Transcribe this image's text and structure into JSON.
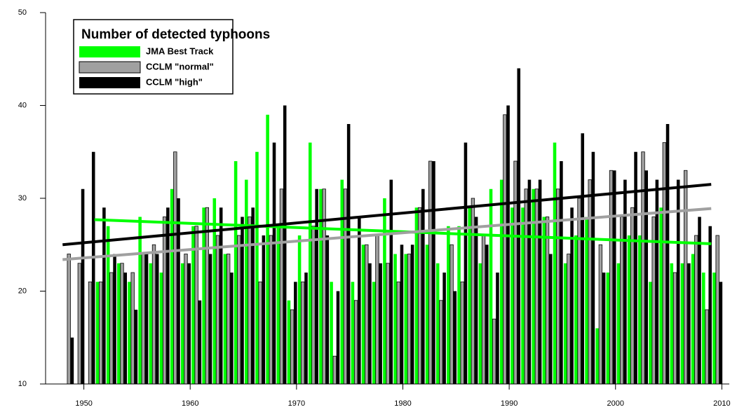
{
  "chart_data": {
    "type": "bar",
    "x": [
      1948,
      1949,
      1950,
      1951,
      1952,
      1953,
      1954,
      1955,
      1956,
      1957,
      1958,
      1959,
      1960,
      1961,
      1962,
      1963,
      1964,
      1965,
      1966,
      1967,
      1968,
      1969,
      1970,
      1971,
      1972,
      1973,
      1974,
      1975,
      1976,
      1977,
      1978,
      1979,
      1980,
      1981,
      1982,
      1983,
      1984,
      1985,
      1986,
      1987,
      1988,
      1989,
      1990,
      1991,
      1992,
      1993,
      1994,
      1995,
      1996,
      1997,
      1998,
      1999,
      2000,
      2001,
      2002,
      2003,
      2004,
      2005,
      2006,
      2007,
      2008,
      2009
    ],
    "legend_title": "Number of detected typhoons",
    "series": [
      {
        "name": "JMA Best Track",
        "color": "#00ff00",
        "values": [
          null,
          null,
          null,
          21,
          27,
          23,
          21,
          28,
          23,
          22,
          31,
          23,
          27,
          29,
          30,
          24,
          34,
          32,
          35,
          39,
          27,
          19,
          26,
          36,
          31,
          21,
          32,
          21,
          25,
          21,
          30,
          24,
          24,
          29,
          25,
          23,
          27,
          27,
          29,
          23,
          31,
          32,
          29,
          29,
          31,
          28,
          36,
          23,
          26,
          28,
          16,
          22,
          23,
          26,
          26,
          21,
          29,
          23,
          23,
          24,
          22,
          22
        ],
        "trend": {
          "x": [
            1951,
            2009
          ],
          "values": [
            27.7,
            25.1
          ]
        }
      },
      {
        "name": "CCLM \"normal\"",
        "color": "#a0a0a0",
        "values": [
          24,
          23,
          21,
          21,
          22,
          23,
          22,
          24,
          25,
          28,
          35,
          24,
          27,
          29,
          26,
          24,
          26,
          28,
          21,
          26,
          31,
          18,
          21,
          27,
          31,
          13,
          31,
          19,
          25,
          26,
          23,
          21,
          24,
          29,
          34,
          19,
          25,
          21,
          30,
          26,
          17,
          39,
          34,
          31,
          31,
          28,
          31,
          24,
          30,
          32,
          25,
          33,
          28,
          29,
          35,
          28,
          36,
          22,
          33,
          26,
          18,
          26
        ],
        "trend": {
          "x": [
            1948,
            2009
          ],
          "values": [
            23.4,
            28.9
          ]
        }
      },
      {
        "name": "CCLM \"high\"",
        "color": "#000000",
        "values": [
          15,
          31,
          35,
          29,
          24,
          22,
          18,
          24,
          24,
          29,
          30,
          23,
          19,
          24,
          29,
          22,
          28,
          29,
          26,
          36,
          40,
          21,
          22,
          31,
          26,
          20,
          38,
          28,
          23,
          23,
          32,
          25,
          25,
          31,
          34,
          22,
          20,
          36,
          28,
          25,
          22,
          40,
          44,
          32,
          32,
          24,
          34,
          29,
          37,
          35,
          22,
          33,
          32,
          35,
          33,
          32,
          38,
          32,
          23,
          28,
          27,
          21
        ],
        "trend": {
          "x": [
            1948,
            2009
          ],
          "values": [
            25.0,
            31.5
          ]
        }
      }
    ],
    "xlim": [
      1946.4,
      2010.7
    ],
    "xticks": [
      1950,
      1960,
      1970,
      1980,
      1990,
      2000,
      2010
    ],
    "ylim": [
      10,
      50
    ],
    "yticks": [
      10,
      20,
      30,
      40,
      50
    ]
  }
}
